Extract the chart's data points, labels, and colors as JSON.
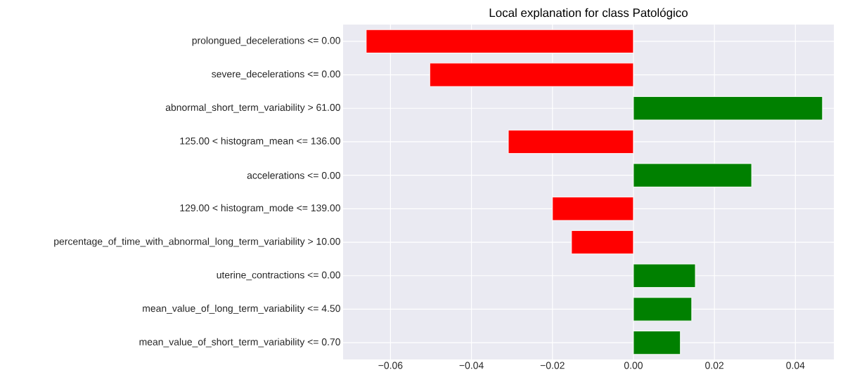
{
  "chart_data": {
    "type": "bar",
    "orientation": "horizontal",
    "title": "Local explanation for class Patológico",
    "categories": [
      "prolongued_decelerations <= 0.00",
      "severe_decelerations <= 0.00",
      "abnormal_short_term_variability > 61.00",
      "125.00 < histogram_mean <= 136.00",
      "accelerations <= 0.00",
      "129.00 < histogram_mode <= 139.00",
      "percentage_of_time_with_abnormal_long_term_variability > 10.00",
      "uterine_contractions <= 0.00",
      "mean_value_of_long_term_variability <= 4.50",
      "mean_value_of_short_term_variability <= 0.70"
    ],
    "values": [
      -0.066,
      -0.0503,
      0.0467,
      -0.0309,
      0.0292,
      -0.02,
      -0.0153,
      0.0153,
      0.0144,
      0.0116
    ],
    "colors": [
      "#ff0000",
      "#ff0000",
      "#008000",
      "#ff0000",
      "#008000",
      "#ff0000",
      "#ff0000",
      "#008000",
      "#008000",
      "#008000"
    ],
    "xlim": [
      -0.0717,
      0.0495
    ],
    "xticks": [
      {
        "value": -0.06,
        "label": "−0.06"
      },
      {
        "value": -0.04,
        "label": "−0.04"
      },
      {
        "value": -0.02,
        "label": "−0.02"
      },
      {
        "value": 0,
        "label": "0.00"
      },
      {
        "value": 0.02,
        "label": "0.02"
      },
      {
        "value": 0.04,
        "label": "0.04"
      }
    ],
    "grid": true
  }
}
